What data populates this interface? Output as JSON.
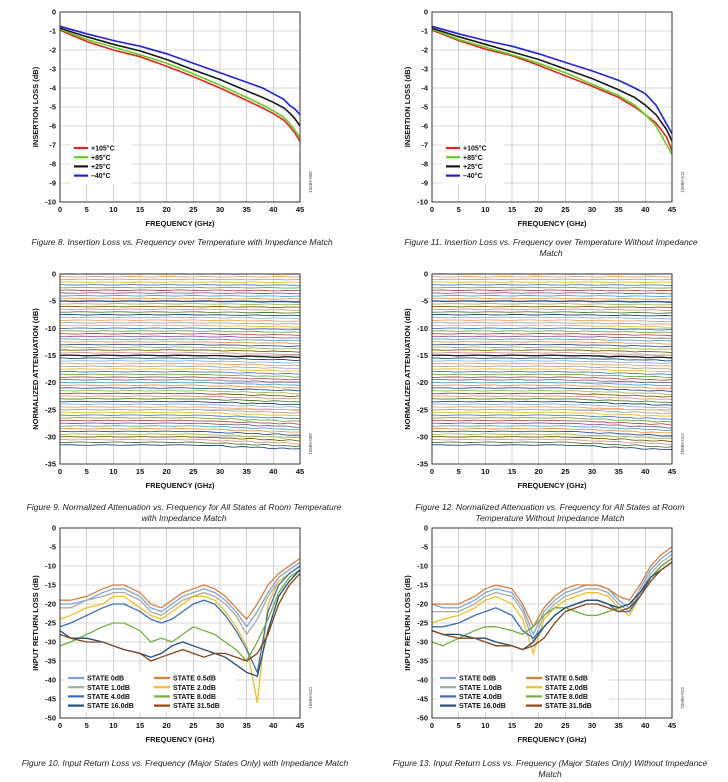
{
  "figures": [
    {
      "caption": "Figure 8. Insertion Loss vs. Frequency over Temperature with Impedance Match",
      "code": "15689-008"
    },
    {
      "caption": "Figure 11. Insertion Loss vs. Frequency over Temperature Without Impedance Match",
      "code": "15689-011"
    },
    {
      "caption": "Figure 9. Normalized Attenuation vs. Frequency for All States at Room Temperature with Impedance Match",
      "code": "15689-009"
    },
    {
      "caption": "Figure 12. Normalized Attenuation vs. Frequency for All States at Room Temperature Without Impedance Match",
      "code": "15689-012"
    },
    {
      "caption": "Figure 10. Input Return Loss vs. Frequency (Major States Only) with Impedance Match",
      "code": "15689-010"
    },
    {
      "caption": "Figure 13. Input Return Loss vs. Frequency (Major States Only) Without Impedance Match",
      "code": "15689-013"
    }
  ],
  "chart_data": [
    {
      "type": "line",
      "xlabel": "FREQUENCY (GHz)",
      "ylabel": "INSERTION LOSS (dB)",
      "xlim": [
        0,
        45
      ],
      "ylim": [
        -10,
        0
      ],
      "xticks": [
        0,
        5,
        10,
        15,
        20,
        25,
        30,
        35,
        40,
        45
      ],
      "yticks": [
        0,
        -1,
        -2,
        -3,
        -4,
        -5,
        -6,
        -7,
        -8,
        -9,
        -10
      ],
      "grid": true,
      "legend": "bottom-left",
      "x": [
        0,
        5,
        10,
        15,
        20,
        25,
        30,
        35,
        38,
        40,
        42,
        43,
        44,
        45
      ],
      "series": [
        {
          "name": "+105°C",
          "color": "#e8231f",
          "values": [
            -0.95,
            -1.55,
            -2.0,
            -2.35,
            -2.85,
            -3.4,
            -4.0,
            -4.65,
            -5.05,
            -5.35,
            -5.7,
            -6.0,
            -6.35,
            -6.8
          ]
        },
        {
          "name": "+85°C",
          "color": "#5cd21e",
          "values": [
            -0.9,
            -1.45,
            -1.85,
            -2.25,
            -2.7,
            -3.25,
            -3.85,
            -4.5,
            -4.9,
            -5.2,
            -5.55,
            -5.85,
            -6.2,
            -6.6
          ]
        },
        {
          "name": "+25°C",
          "color": "#1a1a1a",
          "values": [
            -0.85,
            -1.3,
            -1.7,
            -2.05,
            -2.5,
            -3.05,
            -3.55,
            -4.15,
            -4.5,
            -4.75,
            -5.05,
            -5.3,
            -5.6,
            -6.0
          ]
        },
        {
          "name": "–40°C",
          "color": "#2222dd",
          "values": [
            -0.75,
            -1.15,
            -1.5,
            -1.8,
            -2.2,
            -2.7,
            -3.2,
            -3.7,
            -4.0,
            -4.3,
            -4.6,
            -4.9,
            -5.1,
            -5.4
          ]
        }
      ]
    },
    {
      "type": "line",
      "xlabel": "FREQUENCY (GHz)",
      "ylabel": "INSERTION LOSS (dB)",
      "xlim": [
        0,
        45
      ],
      "ylim": [
        -10,
        0
      ],
      "xticks": [
        0,
        5,
        10,
        15,
        20,
        25,
        30,
        35,
        40,
        45
      ],
      "yticks": [
        0,
        -1,
        -2,
        -3,
        -4,
        -5,
        -6,
        -7,
        -8,
        -9,
        -10
      ],
      "grid": true,
      "legend": "bottom-left",
      "x": [
        0,
        5,
        10,
        15,
        20,
        25,
        30,
        35,
        38,
        40,
        42,
        43,
        44,
        45
      ],
      "series": [
        {
          "name": "+105°C",
          "color": "#e8231f",
          "values": [
            -0.95,
            -1.5,
            -1.95,
            -2.3,
            -2.8,
            -3.35,
            -3.9,
            -4.5,
            -5.0,
            -5.4,
            -5.85,
            -6.2,
            -6.6,
            -7.3
          ]
        },
        {
          "name": "+85°C",
          "color": "#5cd21e",
          "values": [
            -0.9,
            -1.45,
            -1.85,
            -2.25,
            -2.7,
            -3.2,
            -3.8,
            -4.4,
            -4.9,
            -5.4,
            -6.0,
            -6.5,
            -7.0,
            -7.5
          ]
        },
        {
          "name": "+25°C",
          "color": "#1a1a1a",
          "values": [
            -0.85,
            -1.3,
            -1.7,
            -2.1,
            -2.5,
            -3.0,
            -3.5,
            -4.1,
            -4.5,
            -4.9,
            -5.4,
            -5.8,
            -6.2,
            -6.8
          ]
        },
        {
          "name": "–40°C",
          "color": "#2222dd",
          "values": [
            -0.75,
            -1.15,
            -1.5,
            -1.8,
            -2.2,
            -2.65,
            -3.1,
            -3.6,
            -4.0,
            -4.3,
            -4.9,
            -5.4,
            -5.9,
            -6.4
          ]
        }
      ]
    },
    {
      "type": "line",
      "xlabel": "FREQUENCY (GHz)",
      "ylabel": "NORMALIZED ATTENUATION (dB)",
      "xlim": [
        0,
        45
      ],
      "ylim": [
        -35,
        0
      ],
      "xticks": [
        0,
        5,
        10,
        15,
        20,
        25,
        30,
        35,
        40,
        45
      ],
      "yticks": [
        0,
        -5,
        -10,
        -15,
        -20,
        -25,
        -30,
        -35
      ],
      "grid": true,
      "state_step_db": 0.5,
      "state_count": 64,
      "state_range_db": [
        0,
        -31.5
      ]
    },
    {
      "type": "line",
      "xlabel": "FREQUENCY (GHz)",
      "ylabel": "NORMALIZED ATTENUATION (dB)",
      "xlim": [
        0,
        45
      ],
      "ylim": [
        -35,
        0
      ],
      "xticks": [
        0,
        5,
        10,
        15,
        20,
        25,
        30,
        35,
        40,
        45
      ],
      "yticks": [
        0,
        -5,
        -10,
        -15,
        -20,
        -25,
        -30,
        -35
      ],
      "grid": true,
      "state_step_db": 0.5,
      "state_count": 64,
      "state_range_db": [
        0,
        -31.5
      ]
    },
    {
      "type": "line",
      "xlabel": "FREQUENCY (GHz)",
      "ylabel": "INPUT RETURN LOSS (dB)",
      "xlim": [
        0,
        45
      ],
      "ylim": [
        -50,
        0
      ],
      "xticks": [
        0,
        5,
        10,
        15,
        20,
        25,
        30,
        35,
        40,
        45
      ],
      "yticks": [
        0,
        -5,
        -10,
        -15,
        -20,
        -25,
        -30,
        -35,
        -40,
        -45,
        -50
      ],
      "grid": true,
      "legend": "bottom-left",
      "x": [
        0,
        2,
        5,
        8,
        10,
        12,
        15,
        17,
        19,
        21,
        23,
        25,
        27,
        29,
        31,
        33,
        35,
        37,
        39,
        41,
        43,
        45
      ],
      "series": [
        {
          "name": "STATE 0dB",
          "color": "#7aa7d8",
          "values": [
            -20,
            -20,
            -19,
            -17,
            -16,
            -16,
            -18,
            -21,
            -22,
            -20,
            -18,
            -17,
            -16,
            -17,
            -19,
            -22,
            -26,
            -22,
            -17,
            -13,
            -11,
            -9
          ]
        },
        {
          "name": "STATE 0.5dB",
          "color": "#e07b39",
          "values": [
            -19,
            -19,
            -18,
            -16,
            -15,
            -15,
            -17,
            -20,
            -21,
            -19,
            -17,
            -16,
            -15,
            -16,
            -18,
            -21,
            -24,
            -20,
            -15,
            -12,
            -10,
            -8
          ]
        },
        {
          "name": "STATE 1.0dB",
          "color": "#a9a9a9",
          "values": [
            -21,
            -21,
            -19,
            -18,
            -17,
            -17,
            -19,
            -22,
            -23,
            -21,
            -19,
            -18,
            -17,
            -18,
            -20,
            -23,
            -28,
            -24,
            -18,
            -14,
            -12,
            -10
          ]
        },
        {
          "name": "STATE 2.0dB",
          "color": "#f0c020",
          "values": [
            -24,
            -23,
            -21,
            -20,
            -18,
            -18,
            -21,
            -23,
            -24,
            -22,
            -20,
            -18,
            -18,
            -19,
            -22,
            -26,
            -31,
            -46,
            -20,
            -14,
            -12,
            -10
          ]
        },
        {
          "name": "STATE 4.0dB",
          "color": "#3a6fb8",
          "values": [
            -26,
            -25,
            -23,
            -21,
            -20,
            -20,
            -22,
            -24,
            -25,
            -24,
            -22,
            -20,
            -19,
            -20,
            -23,
            -27,
            -32,
            -38,
            -22,
            -15,
            -12,
            -10
          ]
        },
        {
          "name": "STATE 8.0dB",
          "color": "#70b040",
          "values": [
            -31,
            -30,
            -28,
            -26,
            -25,
            -25,
            -27,
            -30,
            -29,
            -30,
            -28,
            -26,
            -27,
            -28,
            -30,
            -32,
            -35,
            -30,
            -24,
            -17,
            -13,
            -11
          ]
        },
        {
          "name": "STATE 16.0dB",
          "color": "#1f4e79",
          "values": [
            -27,
            -29,
            -29,
            -30,
            -31,
            -32,
            -33,
            -34,
            -33,
            -31,
            -30,
            -31,
            -32,
            -33,
            -34,
            -36,
            -38,
            -39,
            -27,
            -18,
            -14,
            -11
          ]
        },
        {
          "name": "STATE 31.5dB",
          "color": "#8b4513",
          "values": [
            -28,
            -29,
            -30,
            -30,
            -31,
            -32,
            -33,
            -35,
            -34,
            -33,
            -32,
            -33,
            -34,
            -33,
            -33,
            -34,
            -35,
            -33,
            -28,
            -20,
            -15,
            -12
          ]
        }
      ]
    },
    {
      "type": "line",
      "xlabel": "FREQUENCY (GHz)",
      "ylabel": "INPUT RETURN LOSS (dB)",
      "xlim": [
        0,
        45
      ],
      "ylim": [
        -50,
        0
      ],
      "xticks": [
        0,
        5,
        10,
        15,
        20,
        25,
        30,
        35,
        40,
        45
      ],
      "yticks": [
        0,
        -5,
        -10,
        -15,
        -20,
        -25,
        -30,
        -35,
        -40,
        -45,
        -50
      ],
      "grid": true,
      "legend": "bottom-left",
      "x": [
        0,
        2,
        5,
        8,
        10,
        12,
        15,
        17,
        19,
        21,
        23,
        25,
        27,
        29,
        31,
        33,
        35,
        37,
        39,
        41,
        43,
        45
      ],
      "series": [
        {
          "name": "STATE 0dB",
          "color": "#7aa7d8",
          "values": [
            -20,
            -21,
            -21,
            -19,
            -17,
            -16,
            -17,
            -21,
            -28,
            -22,
            -19,
            -17,
            -16,
            -15,
            -15,
            -16,
            -19,
            -21,
            -16,
            -11,
            -8,
            -6
          ]
        },
        {
          "name": "STATE 0.5dB",
          "color": "#e07b39",
          "values": [
            -20,
            -20,
            -20,
            -18,
            -16,
            -15,
            -16,
            -20,
            -26,
            -21,
            -18,
            -16,
            -15,
            -15,
            -15,
            -16,
            -18,
            -19,
            -15,
            -10,
            -7,
            -5
          ]
        },
        {
          "name": "STATE 1.0dB",
          "color": "#a9a9a9",
          "values": [
            -22,
            -22,
            -22,
            -20,
            -18,
            -17,
            -18,
            -22,
            -30,
            -23,
            -20,
            -18,
            -17,
            -16,
            -16,
            -17,
            -20,
            -22,
            -17,
            -12,
            -9,
            -7
          ]
        },
        {
          "name": "STATE 2.0dB",
          "color": "#f0c020",
          "values": [
            -25,
            -24,
            -23,
            -21,
            -19,
            -18,
            -20,
            -24,
            -33,
            -24,
            -21,
            -19,
            -18,
            -17,
            -17,
            -18,
            -21,
            -23,
            -18,
            -13,
            -10,
            -8
          ]
        },
        {
          "name": "STATE 4.0dB",
          "color": "#3a6fb8",
          "values": [
            -26,
            -26,
            -25,
            -23,
            -22,
            -21,
            -23,
            -27,
            -29,
            -26,
            -23,
            -21,
            -20,
            -19,
            -19,
            -20,
            -22,
            -22,
            -18,
            -13,
            -10,
            -8
          ]
        },
        {
          "name": "STATE 8.0dB",
          "color": "#70b040",
          "values": [
            -30,
            -31,
            -29,
            -27,
            -26,
            -26,
            -27,
            -28,
            -26,
            -23,
            -21,
            -21,
            -22,
            -23,
            -23,
            -22,
            -21,
            -20,
            -17,
            -13,
            -10,
            -8
          ]
        },
        {
          "name": "STATE 16.0dB",
          "color": "#1f4e79",
          "values": [
            -27,
            -28,
            -28,
            -29,
            -29,
            -30,
            -31,
            -32,
            -30,
            -26,
            -23,
            -21,
            -20,
            -19,
            -19,
            -20,
            -21,
            -20,
            -17,
            -13,
            -11,
            -9
          ]
        },
        {
          "name": "STATE 31.5dB",
          "color": "#8b4513",
          "values": [
            -27,
            -28,
            -29,
            -29,
            -30,
            -31,
            -31,
            -32,
            -31,
            -29,
            -25,
            -22,
            -21,
            -20,
            -20,
            -21,
            -22,
            -21,
            -18,
            -14,
            -11,
            -9
          ]
        }
      ]
    }
  ]
}
